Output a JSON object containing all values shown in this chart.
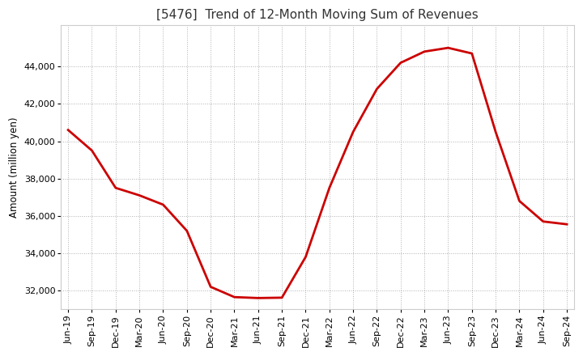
{
  "title": "[5476]  Trend of 12-Month Moving Sum of Revenues",
  "ylabel": "Amount (million yen)",
  "line_color": "#cc0000",
  "background_color": "#ffffff",
  "plot_bg_color": "#ffffff",
  "grid_color": "#b0b0b0",
  "x_labels": [
    "Jun-19",
    "Sep-19",
    "Dec-19",
    "Mar-20",
    "Jun-20",
    "Sep-20",
    "Dec-20",
    "Mar-21",
    "Jun-21",
    "Sep-21",
    "Dec-21",
    "Mar-22",
    "Jun-22",
    "Sep-22",
    "Dec-22",
    "Mar-23",
    "Jun-23",
    "Sep-23",
    "Dec-23",
    "Mar-24",
    "Jun-24",
    "Sep-24"
  ],
  "y_values": [
    40600,
    39500,
    37500,
    37100,
    36600,
    35200,
    32200,
    31650,
    31600,
    31620,
    33800,
    37500,
    40500,
    42800,
    44200,
    44800,
    45000,
    44700,
    40500,
    36800,
    35700,
    35550
  ],
  "yticks": [
    32000,
    34000,
    36000,
    38000,
    40000,
    42000,
    44000
  ],
  "ylim": [
    31000,
    46200
  ],
  "title_fontsize": 11,
  "axis_fontsize": 8.5,
  "tick_fontsize": 8,
  "line_width": 2.0,
  "figsize": [
    7.2,
    4.4
  ],
  "dpi": 100
}
